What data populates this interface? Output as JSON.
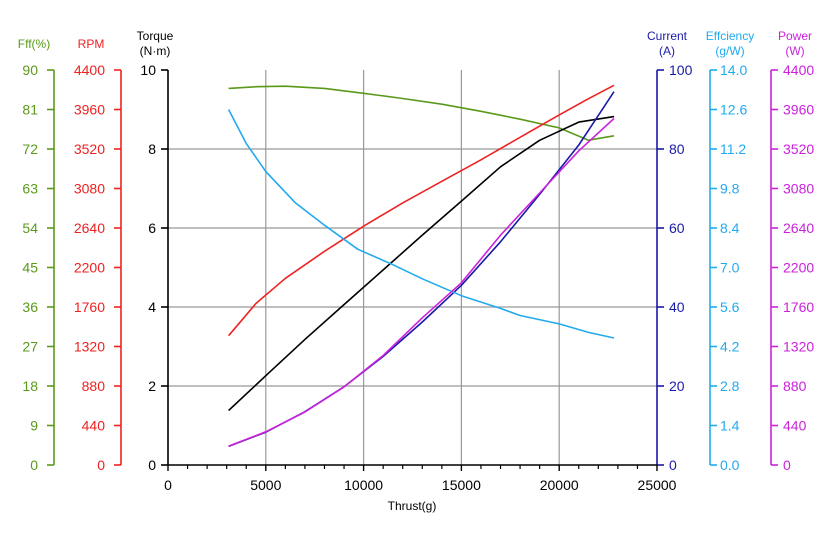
{
  "chart_data": {
    "type": "line",
    "title": "",
    "xlabel": "Thrust(g)",
    "xlim": [
      0,
      25000
    ],
    "xticks": [
      0,
      5000,
      10000,
      15000,
      20000,
      25000
    ],
    "grid": true,
    "colors": {
      "fff": "#5a9a1a",
      "rpm": "#ee2222",
      "torque": "#000000",
      "current": "#1a1aaa",
      "efficiency": "#22aaee",
      "power": "#cc22dd",
      "grid": "#999999"
    },
    "axes": {
      "fff": {
        "title": "Fff(%)",
        "range": [
          0,
          90
        ],
        "ticks": [
          "0",
          "9",
          "18",
          "27",
          "36",
          "45",
          "54",
          "63",
          "72",
          "81",
          "90"
        ]
      },
      "rpm": {
        "title": "RPM",
        "range": [
          0,
          4400
        ],
        "ticks": [
          "0",
          "440",
          "880",
          "1320",
          "1760",
          "2200",
          "2640",
          "3080",
          "3520",
          "3960",
          "4400"
        ]
      },
      "torque": {
        "title_line1": "Torque",
        "title_line2": "(N·m)",
        "range": [
          0,
          10
        ],
        "ticks": [
          "0",
          "2",
          "4",
          "6",
          "8",
          "10"
        ]
      },
      "current": {
        "title_line1": "Current",
        "title_line2": "(A)",
        "range": [
          0,
          100
        ],
        "ticks": [
          "0",
          "20",
          "40",
          "60",
          "80",
          "100"
        ]
      },
      "efficiency": {
        "title_line1": "Effciency",
        "title_line2": "(g/W)",
        "range": [
          0,
          14
        ],
        "ticks": [
          "0.0",
          "1.4",
          "2.8",
          "4.2",
          "5.6",
          "7.0",
          "8.4",
          "9.8",
          "11.2",
          "12.6",
          "14.0"
        ]
      },
      "power": {
        "title_line1": "Power",
        "title_line2": "(W)",
        "range": [
          0,
          4400
        ],
        "ticks": [
          "0",
          "440",
          "880",
          "1320",
          "1760",
          "2200",
          "2640",
          "3080",
          "3520",
          "3960",
          "4400"
        ]
      }
    },
    "series": [
      {
        "name": "Fff(%)",
        "axis": "fff",
        "x": [
          3100,
          4500,
          6000,
          8000,
          10000,
          12000,
          14000,
          16000,
          18000,
          20000,
          21500,
          22800
        ],
        "y": [
          85.8,
          86.2,
          86.3,
          85.8,
          84.7,
          83.5,
          82.2,
          80.6,
          78.8,
          76.8,
          74.0,
          75.0
        ]
      },
      {
        "name": "RPM",
        "axis": "rpm",
        "x": [
          3100,
          4500,
          6000,
          8000,
          10000,
          12000,
          14000,
          16000,
          18000,
          20000,
          21500,
          22800
        ],
        "y": [
          1440,
          1800,
          2080,
          2380,
          2660,
          2920,
          3160,
          3400,
          3650,
          3900,
          4080,
          4230
        ]
      },
      {
        "name": "Torque",
        "axis": "torque",
        "x": [
          3100,
          5000,
          7000,
          9000,
          11000,
          13000,
          15000,
          17000,
          19000,
          21000,
          22800
        ],
        "y": [
          1.38,
          2.26,
          3.18,
          4.06,
          4.94,
          5.82,
          6.68,
          7.55,
          8.22,
          8.68,
          8.82
        ]
      },
      {
        "name": "Current",
        "axis": "current",
        "x": [
          3100,
          5000,
          7000,
          9000,
          11000,
          13000,
          15000,
          17000,
          19000,
          21000,
          22800
        ],
        "y": [
          4.7,
          8.3,
          13.5,
          19.8,
          27.5,
          36.2,
          45.5,
          56.5,
          68.5,
          81.0,
          94.5
        ]
      },
      {
        "name": "Effciency",
        "axis": "efficiency",
        "x": [
          3100,
          4000,
          5000,
          6500,
          8000,
          9700,
          11500,
          13000,
          15000,
          17000,
          18000,
          20000,
          21500,
          22800
        ],
        "y": [
          12.6,
          11.4,
          10.4,
          9.3,
          8.5,
          7.65,
          7.1,
          6.6,
          6.0,
          5.55,
          5.3,
          5.0,
          4.7,
          4.5
        ]
      },
      {
        "name": "Power",
        "axis": "power",
        "x": [
          3100,
          5000,
          7000,
          9000,
          11000,
          13000,
          15000,
          17000,
          19000,
          21000,
          22800
        ],
        "y": [
          210,
          370,
          590,
          870,
          1220,
          1640,
          2030,
          2560,
          3030,
          3500,
          3860
        ]
      }
    ]
  }
}
